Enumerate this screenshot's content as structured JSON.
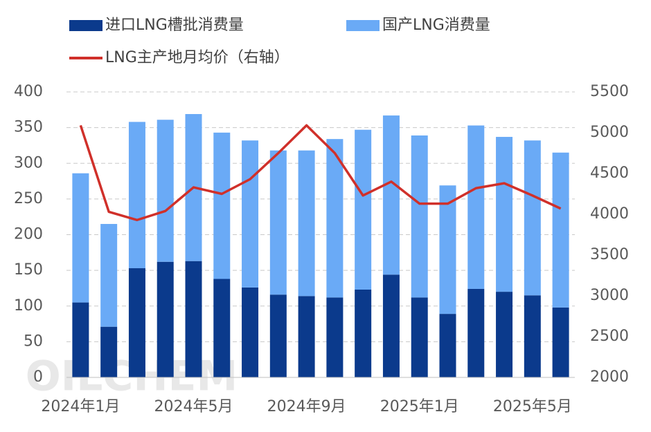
{
  "chart_data": {
    "type": "bar",
    "stacked": true,
    "watermark": "OILCHEM",
    "categories": [
      "2024年1月",
      null,
      null,
      null,
      "2024年5月",
      null,
      null,
      null,
      "2024年9月",
      null,
      null,
      null,
      "2025年1月",
      null,
      null,
      null,
      "2025年5月",
      null
    ],
    "series": [
      {
        "name": "进口LNG槽批消费量",
        "color": "#0b3a8c",
        "type": "bar",
        "values": [
          105,
          71,
          153,
          162,
          163,
          138,
          126,
          116,
          114,
          112,
          123,
          144,
          112,
          89,
          124,
          120,
          115,
          98
        ]
      },
      {
        "name": "国产LNG消费量",
        "color": "#6aaaf6",
        "type": "bar",
        "values": [
          181,
          144,
          205,
          199,
          206,
          205,
          206,
          202,
          204,
          222,
          224,
          223,
          227,
          180,
          229,
          217,
          217,
          217
        ]
      },
      {
        "name": "LNG主产地月均价（右轴）",
        "color": "#d0302a",
        "type": "line",
        "axis": "y2",
        "values": [
          5090,
          4030,
          3930,
          4040,
          4330,
          4250,
          4430,
          4750,
          5090,
          4750,
          4230,
          4400,
          4130,
          4130,
          4320,
          4380,
          4230,
          4070
        ]
      }
    ],
    "ylim": [
      0,
      400
    ],
    "yticks": [
      0,
      50,
      100,
      150,
      200,
      250,
      300,
      350,
      400
    ],
    "y2lim": [
      2000,
      5500
    ],
    "y2ticks": [
      2000,
      2500,
      3000,
      3500,
      4000,
      4500,
      5000,
      5500
    ],
    "grid": true,
    "legend": "top"
  }
}
